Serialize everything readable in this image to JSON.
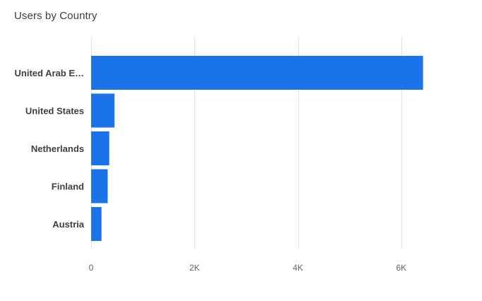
{
  "chart_data": {
    "type": "bar",
    "orientation": "horizontal",
    "title": "Users by Country",
    "categories": [
      "United Arab E…",
      "United States",
      "Netherlands",
      "Finland",
      "Austria"
    ],
    "values": [
      6420,
      450,
      350,
      320,
      200
    ],
    "xlim": [
      0,
      7000
    ],
    "x_ticks": [
      0,
      2000,
      4000,
      6000
    ],
    "x_tick_labels": [
      "0",
      "2K",
      "4K",
      "6K"
    ],
    "xlabel": "",
    "ylabel": "",
    "grid": true,
    "bar_color": "#1a73e8",
    "grid_color": "#e0e0e0"
  }
}
